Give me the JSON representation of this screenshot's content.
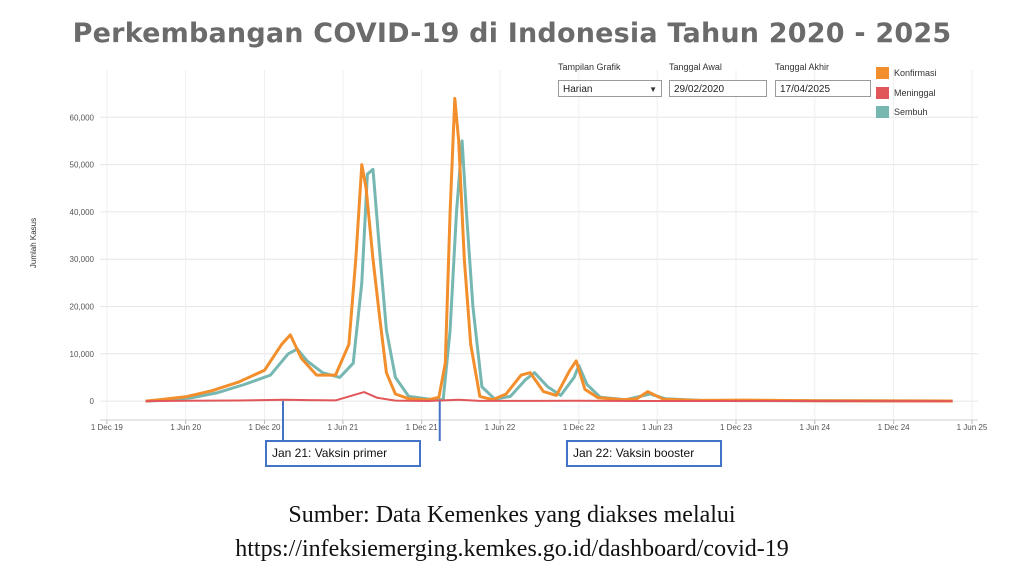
{
  "title": "Perkembangan COVID-19 di Indonesia Tahun 2020 - 2025",
  "controls": {
    "view_label": "Tampilan Grafik",
    "view_value": "Harian",
    "start_label": "Tanggal Awal",
    "start_value": "29/02/2020",
    "end_label": "Tanggal Akhir",
    "end_value": "17/04/2025"
  },
  "annotations": [
    {
      "text": "Jan 21: Vaksin primer",
      "date": "2021-01-13"
    },
    {
      "text": "Jan 22: Vaksin booster",
      "date": "2022-01-12"
    }
  ],
  "source_line1": "Sumber: Data Kemenkes yang diakses melalui",
  "source_line2": "https://infeksiemerging.kemkes.go.id/dashboard/covid-19",
  "colors": {
    "konfirmasi": "#f28e2b",
    "meninggal": "#e15759",
    "sembuh": "#76b7b2",
    "callout_border": "#4472c4"
  },
  "chart_data": {
    "type": "line",
    "title": "Perkembangan COVID-19 di Indonesia Tahun 2020 - 2025",
    "xlabel": "",
    "ylabel": "Jumlah Kasus",
    "ylim": [
      -4000,
      70000
    ],
    "xlim": [
      "2019-11-15",
      "2025-06-15"
    ],
    "grid": true,
    "legend_position": "top-right",
    "y_ticks": [
      0,
      10000,
      20000,
      30000,
      40000,
      50000,
      60000
    ],
    "y_tick_labels": [
      "0",
      "10,000",
      "20,000",
      "30,000",
      "40,000",
      "50,000",
      "60,000"
    ],
    "x_ticks": [
      "2019-12-01",
      "2020-06-01",
      "2020-12-01",
      "2021-06-01",
      "2021-12-01",
      "2022-06-01",
      "2022-12-01",
      "2023-06-01",
      "2023-12-01",
      "2024-06-01",
      "2024-12-01",
      "2025-06-01"
    ],
    "x_tick_labels": [
      "1 Dec 19",
      "1 Jun 20",
      "1 Dec 20",
      "1 Jun 21",
      "1 Dec 21",
      "1 Jun 22",
      "1 Dec 22",
      "1 Jun 23",
      "1 Dec 23",
      "1 Jun 24",
      "1 Dec 24",
      "1 Jun 25"
    ],
    "series": [
      {
        "name": "Konfirmasi",
        "color": "#f28e2b",
        "x": [
          "2020-02-29",
          "2020-04-01",
          "2020-06-01",
          "2020-08-01",
          "2020-10-01",
          "2020-12-01",
          "2021-01-10",
          "2021-01-30",
          "2021-02-25",
          "2021-04-01",
          "2021-05-15",
          "2021-06-15",
          "2021-07-01",
          "2021-07-15",
          "2021-07-25",
          "2021-08-10",
          "2021-08-25",
          "2021-09-10",
          "2021-10-01",
          "2021-11-01",
          "2021-12-15",
          "2022-01-10",
          "2022-01-25",
          "2022-02-05",
          "2022-02-16",
          "2022-02-25",
          "2022-03-10",
          "2022-03-25",
          "2022-04-15",
          "2022-05-15",
          "2022-06-15",
          "2022-07-20",
          "2022-08-10",
          "2022-09-10",
          "2022-10-10",
          "2022-11-10",
          "2022-11-25",
          "2022-12-15",
          "2023-01-15",
          "2023-03-15",
          "2023-04-15",
          "2023-05-10",
          "2023-06-15",
          "2023-09-01",
          "2023-12-15",
          "2024-06-01",
          "2024-12-01",
          "2025-04-17"
        ],
        "y": [
          0,
          300,
          900,
          2200,
          4000,
          6500,
          12000,
          14000,
          9000,
          5500,
          5500,
          12000,
          30000,
          50000,
          45000,
          30000,
          18000,
          6000,
          1500,
          500,
          250,
          800,
          8000,
          40000,
          64000,
          55000,
          30000,
          12000,
          1000,
          300,
          1500,
          5500,
          6000,
          2000,
          1200,
          6500,
          8500,
          2500,
          700,
          300,
          500,
          2000,
          400,
          150,
          200,
          50,
          30,
          20
        ]
      },
      {
        "name": "Meninggal",
        "color": "#e15759",
        "x": [
          "2020-02-29",
          "2020-06-01",
          "2020-10-01",
          "2021-01-15",
          "2021-03-15",
          "2021-05-15",
          "2021-07-20",
          "2021-08-20",
          "2021-10-01",
          "2021-12-15",
          "2022-02-25",
          "2022-04-15",
          "2022-08-15",
          "2022-11-25",
          "2023-05-01",
          "2025-04-17"
        ],
        "y": [
          0,
          50,
          120,
          300,
          200,
          150,
          1900,
          700,
          100,
          10,
          300,
          30,
          40,
          60,
          10,
          0
        ]
      },
      {
        "name": "Sembuh",
        "color": "#76b7b2",
        "x": [
          "2020-02-29",
          "2020-04-15",
          "2020-06-15",
          "2020-08-15",
          "2020-10-15",
          "2020-12-15",
          "2021-01-25",
          "2021-02-15",
          "2021-03-10",
          "2021-04-15",
          "2021-05-25",
          "2021-06-25",
          "2021-07-15",
          "2021-07-28",
          "2021-08-10",
          "2021-08-25",
          "2021-09-10",
          "2021-10-01",
          "2021-11-01",
          "2021-12-20",
          "2022-01-20",
          "2022-02-05",
          "2022-02-20",
          "2022-03-05",
          "2022-03-15",
          "2022-03-30",
          "2022-04-20",
          "2022-05-20",
          "2022-06-25",
          "2022-07-30",
          "2022-08-20",
          "2022-09-20",
          "2022-10-20",
          "2022-11-20",
          "2022-12-01",
          "2022-12-20",
          "2023-01-20",
          "2023-03-20",
          "2023-05-15",
          "2023-06-20",
          "2023-09-10",
          "2023-12-15",
          "2024-06-10",
          "2024-12-10",
          "2025-04-17"
        ],
        "y": [
          0,
          200,
          700,
          1800,
          3500,
          5500,
          10000,
          11000,
          8500,
          6000,
          5000,
          8000,
          25000,
          48000,
          49000,
          32000,
          15000,
          5000,
          1000,
          400,
          300,
          15000,
          40000,
          55000,
          40000,
          20000,
          3000,
          400,
          1000,
          4500,
          6000,
          3000,
          1200,
          5000,
          7500,
          3500,
          800,
          300,
          1500,
          500,
          150,
          100,
          50,
          30,
          20
        ]
      }
    ]
  }
}
